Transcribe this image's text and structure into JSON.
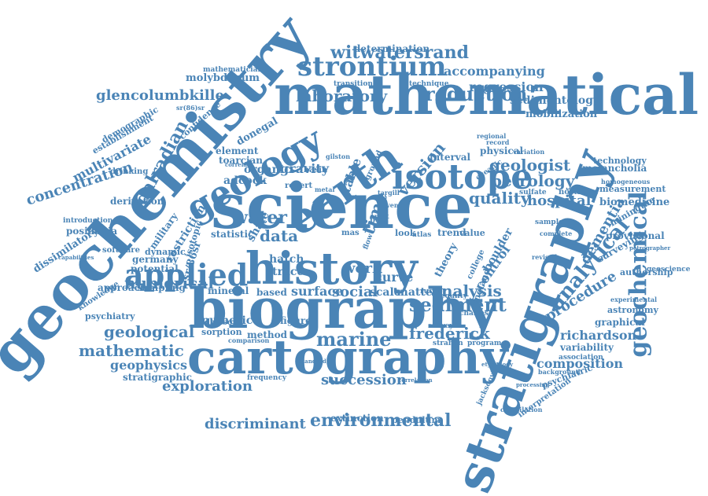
{
  "words": {
    "geochemistry": "geochemistry",
    "stratigraphy": "stratigraphy",
    "science": "science",
    "mathematical": "mathematical",
    "biography": "biography",
    "cartography": "cartography",
    "history": "history",
    "earth": "earth",
    "geology": "geology",
    "isotope": "isotope",
    "strontium": "strontium",
    "applied": "applied",
    "geochemical": "geochemical",
    "analytical": "analytical",
    "environmental": "environmental",
    "witwatersrand": "witwatersrand",
    "reduction": "reduction",
    "laboratory": "laboratory",
    "dalradian": "dalradian",
    "concentration": "concentration",
    "glencolumbkille": "glencolumbkille",
    "determination": "determination",
    "accompanying": "accompanying",
    "regression": "regression",
    "sedimentology": "sedimentology",
    "mobilization": "mobilization",
    "molybdenum": "molybdenum",
    "petrology": "petrology",
    "geologist": "geologist",
    "version": "version",
    "quality": "quality",
    "hospital": "hospital",
    "time": "time",
    "water": "water",
    "data": "data",
    "numerical": "numerical",
    "sediment": "sediment",
    "analysis": "analysis",
    "procedure": "procedure",
    "dementia": "dementia",
    "provisional": "provisional",
    "biomedicine": "biomedicine",
    "measurement": "measurement",
    "melancholia": "melancholia",
    "technology": "technology",
    "marine": "marine",
    "frederick": "frederick",
    "richardson": "richardson",
    "composition": "composition",
    "variability": "variability",
    "graphical": "graphical",
    "mathematic": "mathematic",
    "geological": "geological",
    "geophysics": "geophysics",
    "stratigraphic": "stratigraphic",
    "exploration": "exploration",
    "discriminant": "discriminant",
    "succession": "succession",
    "extinction": "extinction",
    "pendulum": "pendulum",
    "surface": "surface",
    "social": "social",
    "work": "work",
    "curve": "curve",
    "figure": "figure",
    "scale": "scale",
    "matter": "matter",
    "hatch": "hatch",
    "trace": "trace",
    "method": "method",
    "numeric": "numeric",
    "mineral": "mineral",
    "based": "based",
    "adcock": "adcock",
    "organic": "organic",
    "gravity": "gravity",
    "table": "table",
    "multivariate": "multivariate",
    "dissimilatory": "dissimilatory",
    "posidonia": "posidonia",
    "derivation": "derivation",
    "introduction": "introduction",
    "psychiatry": "psychiatry",
    "knowledge": "knowledge",
    "approach": "approach",
    "sampling": "sampling",
    "germany": "germany",
    "potential": "potential",
    "software": "software",
    "military": "military",
    "restriction": "restriction",
    "statistic": "statistic",
    "shale": "shale",
    "sr_ratio": "sr/86sr",
    "isotopic": "isotopic",
    "dynamic": "dynamic",
    "toarcian": "toarcian",
    "donegal": "donegal",
    "element": "element",
    "confidence": "confidence",
    "demographic": "demographic",
    "establishment": "establishment",
    "drinking": "drinking",
    "sorption": "sorption",
    "davison": "davison",
    "control": "control",
    "boulder": "boulder",
    "geoscience": "geoscience",
    "astronomy": "astronomy",
    "authorship": "authorship",
    "surveying": "surveying",
    "experimental": "experimental",
    "association": "association",
    "psychiatric": "psychiatric",
    "interpretation": "interpretation",
    "background": "background",
    "mathematician": "mathematician",
    "transition": "transition",
    "technique": "technique",
    "interval": "interval",
    "physical": "physical",
    "oceanic": "oceanic",
    "northern": "northern",
    "homogeneous": "homogeneous",
    "england": "england",
    "college": "college",
    "revised": "revised",
    "theory": "theory",
    "look": "look",
    "trend": "trend",
    "value": "value",
    "regional": "regional",
    "gilston": "gilston",
    "robert": "robert",
    "basin": "basin",
    "ground": "ground",
    "charles": "charles",
    "survey": "survey",
    "strahan": "strahan",
    "program": "program",
    "county": "county",
    "rucker": "rucker",
    "best": "best",
    "flow": "flow",
    "record": "record",
    "variation": "variation",
    "sulfate": "sulfate",
    "miningthe": "miningthe",
    "petrographer": "petrographer",
    "complete": "complete",
    "sample": "sample",
    "frequency": "frequency",
    "correlation": "correlation",
    "compilation": "compilation",
    "jacksonville": "jacksonville",
    "comparison": "comparison",
    "standard": "standard",
    "processing": "processing",
    "etymology": "etymology",
    "sr86_label": "sr(86)sr",
    "capabilities": "capabilities",
    "correlate": "correlate",
    "metal": "metal",
    "atlas": "atlas",
    "mas": "mas",
    "part": "part",
    "event": "event",
    "targill": "targill"
  },
  "color": "#4a84b6"
}
